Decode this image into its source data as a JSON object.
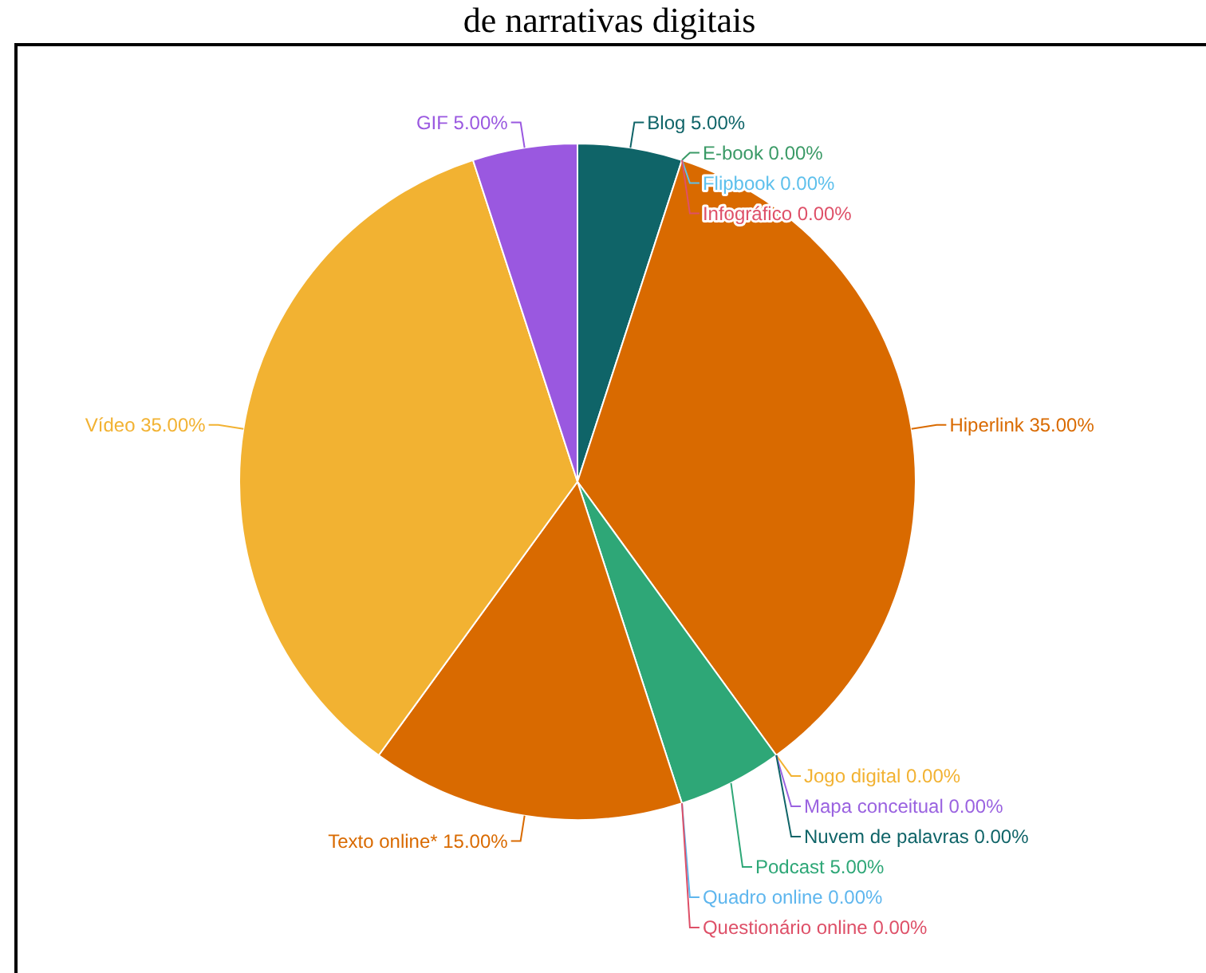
{
  "chart_data": {
    "type": "pie",
    "title": "de narrativas digitais",
    "categories": [
      "Blog",
      "E-book",
      "Flipbook",
      "Infográfico",
      "Hiperlink",
      "Jogo digital",
      "Mapa conceitual",
      "Nuvem de palavras",
      "Podcast",
      "Quadro online",
      "Questionário online",
      "Texto online*",
      "Vídeo",
      "GIF"
    ],
    "values": [
      5,
      0,
      0,
      0,
      35,
      0,
      0,
      0,
      5,
      0,
      0,
      15,
      35,
      5
    ],
    "value_labels": [
      "5.00%",
      "0.00%",
      "0.00%",
      "0.00%",
      "35.00%",
      "0.00%",
      "0.00%",
      "0.00%",
      "5.00%",
      "0.00%",
      "0.00%",
      "15.00%",
      "35.00%",
      "5.00%"
    ],
    "colors": [
      "#0f6468",
      "#3a9a66",
      "#5ec0ec",
      "#de5068",
      "#d96a00",
      "#f2b232",
      "#9a62e0",
      "#0f6468",
      "#2ea777",
      "#5eb6ee",
      "#de5068",
      "#d96a00",
      "#f2b232",
      "#9a58e0"
    ]
  }
}
